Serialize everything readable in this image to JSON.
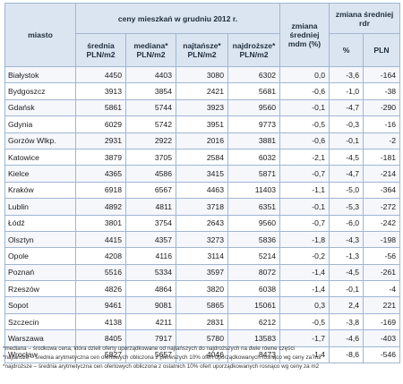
{
  "table": {
    "header": {
      "city": "miasto",
      "group_prices": "ceny mieszkań w grudniu 2012 r.",
      "change_mdm": "zmiana średniej mdm (%)",
      "change_rdr": "zmiana średniej rdr",
      "sub": [
        "średnia PLN/m2",
        "mediana* PLN/m2",
        "najtańsze* PLN/m2",
        "najdroższe* PLN/m2"
      ],
      "rdr_pct": "%",
      "rdr_pln": "PLN"
    },
    "rows": [
      {
        "city": "Białystok",
        "avg": "4450",
        "median": "4403",
        "cheap": "3080",
        "exp": "6302",
        "mdm": "0,0",
        "rdr_pct": "-3,6",
        "rdr_pln": "-164"
      },
      {
        "city": "Bydgoszcz",
        "avg": "3913",
        "median": "3854",
        "cheap": "2421",
        "exp": "5681",
        "mdm": "-0,6",
        "rdr_pct": "-1,0",
        "rdr_pln": "-38"
      },
      {
        "city": "Gdańsk",
        "avg": "5861",
        "median": "5744",
        "cheap": "3923",
        "exp": "9560",
        "mdm": "-0,1",
        "rdr_pct": "-4,7",
        "rdr_pln": "-290"
      },
      {
        "city": "Gdynia",
        "avg": "6029",
        "median": "5742",
        "cheap": "3951",
        "exp": "9773",
        "mdm": "-0,5",
        "rdr_pct": "-0,3",
        "rdr_pln": "-16"
      },
      {
        "city": "Gorzów Wlkp.",
        "avg": "2931",
        "median": "2922",
        "cheap": "2016",
        "exp": "3881",
        "mdm": "-0,6",
        "rdr_pct": "-0,1",
        "rdr_pln": "-2"
      },
      {
        "city": "Katowice",
        "avg": "3879",
        "median": "3705",
        "cheap": "2584",
        "exp": "6032",
        "mdm": "-2,1",
        "rdr_pct": "-4,5",
        "rdr_pln": "-181"
      },
      {
        "city": "Kielce",
        "avg": "4365",
        "median": "4586",
        "cheap": "3415",
        "exp": "5871",
        "mdm": "-0,7",
        "rdr_pct": "-4,7",
        "rdr_pln": "-214"
      },
      {
        "city": "Kraków",
        "avg": "6918",
        "median": "6567",
        "cheap": "4463",
        "exp": "11403",
        "mdm": "-1,1",
        "rdr_pct": "-5,0",
        "rdr_pln": "-364"
      },
      {
        "city": "Lublin",
        "avg": "4892",
        "median": "4811",
        "cheap": "3718",
        "exp": "6351",
        "mdm": "-0,1",
        "rdr_pct": "-5,3",
        "rdr_pln": "-272"
      },
      {
        "city": "Łódź",
        "avg": "3801",
        "median": "3754",
        "cheap": "2643",
        "exp": "9560",
        "mdm": "-0,7",
        "rdr_pct": "-6,0",
        "rdr_pln": "-242"
      },
      {
        "city": "Olsztyn",
        "avg": "4415",
        "median": "4357",
        "cheap": "3273",
        "exp": "5836",
        "mdm": "-1,8",
        "rdr_pct": "-4,3",
        "rdr_pln": "-198"
      },
      {
        "city": "Opole",
        "avg": "4208",
        "median": "4116",
        "cheap": "3114",
        "exp": "5214",
        "mdm": "-0,2",
        "rdr_pct": "-1,3",
        "rdr_pln": "-56"
      },
      {
        "city": "Poznań",
        "avg": "5516",
        "median": "5334",
        "cheap": "3597",
        "exp": "8072",
        "mdm": "-1,4",
        "rdr_pct": "-4,5",
        "rdr_pln": "-261"
      },
      {
        "city": "Rzeszów",
        "avg": "4826",
        "median": "4864",
        "cheap": "3820",
        "exp": "6038",
        "mdm": "-1,4",
        "rdr_pct": "-0,1",
        "rdr_pln": "-4"
      },
      {
        "city": "Sopot",
        "avg": "9461",
        "median": "9081",
        "cheap": "5865",
        "exp": "15061",
        "mdm": "0,3",
        "rdr_pct": "2,4",
        "rdr_pln": "221"
      },
      {
        "city": "Szczecin",
        "avg": "4138",
        "median": "4211",
        "cheap": "2831",
        "exp": "6212",
        "mdm": "-0,5",
        "rdr_pct": "-3,8",
        "rdr_pln": "-169"
      },
      {
        "city": "Warszawa",
        "avg": "8405",
        "median": "7917",
        "cheap": "5780",
        "exp": "13583",
        "mdm": "-1,7",
        "rdr_pct": "-4,6",
        "rdr_pln": "-403"
      },
      {
        "city": "Wrocław",
        "avg": "5827",
        "median": "5657",
        "cheap": "4046",
        "exp": "8473",
        "mdm": "-1,4",
        "rdr_pct": "-8,6",
        "rdr_pln": "-546"
      }
    ]
  },
  "footnotes": [
    "*mediana – środkowa cena, która dzieli oferty uporządkowane od najtańszych do najdroższych na dwie równe części",
    "*najtańsze – średnia arytmetyczna cen ofertowych obliczona z pierwszych 10% ofert uporządkowanych rosnąco wg ceny za m2",
    "*najdroższe – średnia arytmetyczna cen ofertowych obliczona z ostatnich 10% ofert uporządkowanych rosnąco wg ceny za m2"
  ]
}
